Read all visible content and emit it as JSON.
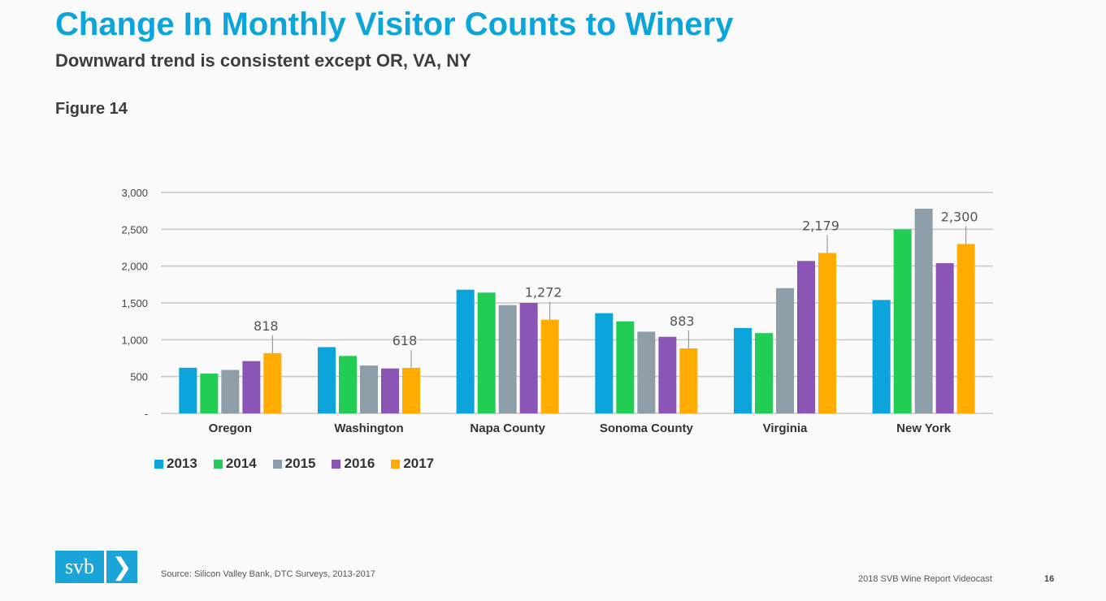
{
  "header": {
    "title": "Change In Monthly Visitor Counts to Winery",
    "subtitle": "Downward trend is consistent except OR, VA, NY",
    "figure_label": "Figure 14"
  },
  "chart_data": {
    "type": "bar",
    "categories": [
      "Oregon",
      "Washington",
      "Napa County",
      "Sonoma County",
      "Virginia",
      "New York"
    ],
    "series": [
      {
        "name": "2013",
        "color": "#0ba5dc",
        "values": [
          620,
          900,
          1680,
          1360,
          1160,
          1540
        ]
      },
      {
        "name": "2014",
        "color": "#22cc55",
        "values": [
          540,
          780,
          1640,
          1250,
          1090,
          2500
        ]
      },
      {
        "name": "2015",
        "color": "#8d9ea9",
        "values": [
          590,
          650,
          1470,
          1110,
          1700,
          2780
        ]
      },
      {
        "name": "2016",
        "color": "#8a55b5",
        "values": [
          710,
          610,
          1500,
          1040,
          2070,
          2040
        ]
      },
      {
        "name": "2017",
        "color": "#ffab00",
        "values": [
          818,
          618,
          1272,
          883,
          2179,
          2300
        ]
      }
    ],
    "data_labels": [
      {
        "category": "Oregon",
        "series": "2017",
        "text": "818"
      },
      {
        "category": "Washington",
        "series": "2017",
        "text": "618"
      },
      {
        "category": "Napa County",
        "series": "2017",
        "text": "1,272"
      },
      {
        "category": "Sonoma County",
        "series": "2017",
        "text": "883"
      },
      {
        "category": "Virginia",
        "series": "2017",
        "text": "2,179"
      },
      {
        "category": "New York",
        "series": "2017",
        "text": "2,300"
      }
    ],
    "y_ticks": [
      {
        "value": 0,
        "label": "-"
      },
      {
        "value": 500,
        "label": "500"
      },
      {
        "value": 1000,
        "label": "1,000"
      },
      {
        "value": 1500,
        "label": "1,500"
      },
      {
        "value": 2000,
        "label": "2,000"
      },
      {
        "value": 2500,
        "label": "2,500"
      },
      {
        "value": 3000,
        "label": "3,000"
      }
    ],
    "ylim": [
      0,
      3000
    ],
    "grid": true,
    "legend": "bottom-left",
    "xlabel": "",
    "ylabel": ""
  },
  "footer": {
    "logo_text": "svb",
    "logo_chevron": "❯",
    "source": "Source: Silicon Valley Bank, DTC Surveys, 2013-2017",
    "report_title": "2018 SVB Wine Report Videocast",
    "page_number": "16"
  }
}
